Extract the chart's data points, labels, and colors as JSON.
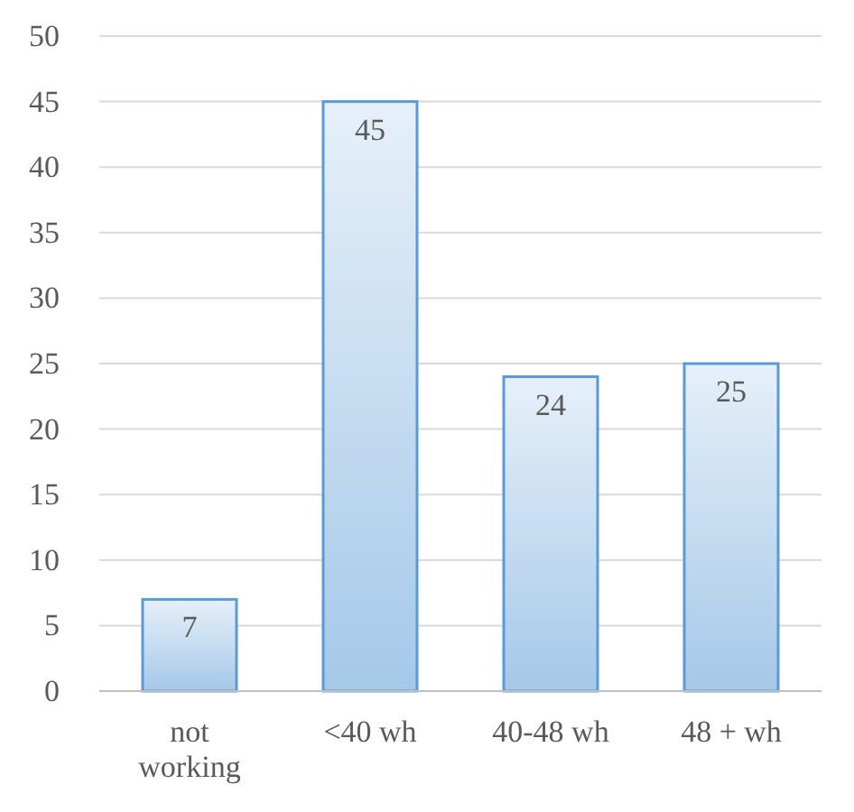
{
  "chart_data": {
    "type": "bar",
    "categories": [
      "not working",
      "<40 wh",
      "40-48 wh",
      "48 + wh"
    ],
    "values": [
      7,
      45,
      24,
      25
    ],
    "color": "#5b9bd5",
    "ylim": [
      0,
      50
    ],
    "yticks": [
      0,
      5,
      10,
      15,
      20,
      25,
      30,
      35,
      40,
      45,
      50
    ],
    "grid": "y",
    "data_labels": true
  }
}
